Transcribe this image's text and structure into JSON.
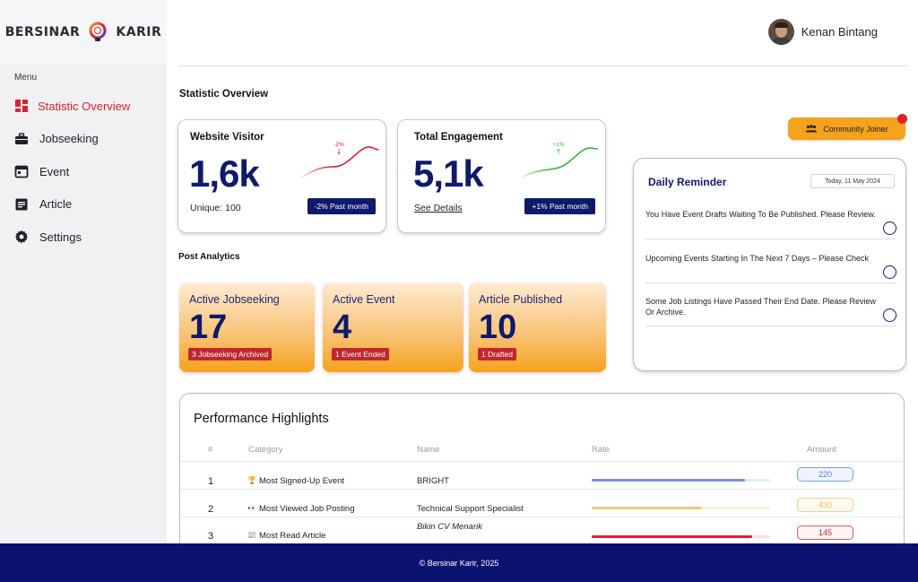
{
  "brand": {
    "left": "BERSINAR",
    "right": "KARIR",
    "accent": "#e0202e"
  },
  "sidebar": {
    "menu_label": "Menu",
    "items": [
      {
        "label": "Statistic Overview",
        "icon": "dashboard-icon",
        "active": true
      },
      {
        "label": "Jobseeking",
        "icon": "briefcase-icon"
      },
      {
        "label": "Event",
        "icon": "calendar-icon"
      },
      {
        "label": "Article",
        "icon": "article-icon"
      },
      {
        "label": "Settings",
        "icon": "gear-icon"
      }
    ]
  },
  "header": {
    "user_name": "Kenan Bintang"
  },
  "statistic_overview": {
    "title": "Statistic Overview",
    "website_visitor": {
      "title": "Website Visitor",
      "value": "1,6k",
      "sub": "Unique: 100",
      "badge": "-2% Past month",
      "trend_label": "-2%",
      "trend_color": "#e0202e"
    },
    "total_engagement": {
      "title": "Total Engagement",
      "value": "5,1k",
      "sub": "See Details",
      "badge": "+1% Past month",
      "trend_label": "+1%",
      "trend_color": "#3cb043"
    }
  },
  "post_analytics": {
    "title": "Post Analytics",
    "cards": [
      {
        "title": "Active Jobseeking",
        "value": "17",
        "tag": "3 Jobseeking Archived"
      },
      {
        "title": "Active Event",
        "value": "4",
        "tag": "1 Event Ended"
      },
      {
        "title": "Article Published",
        "value": "10",
        "tag": "1 Drafted"
      }
    ]
  },
  "community": {
    "label": "Community Joiner",
    "icon": "people-icon"
  },
  "reminder": {
    "title": "Daily Reminder",
    "date": "Today, 11 May 2024",
    "items": [
      {
        "text": "You Have Event Drafts Waiting To Be Published. Please Review."
      },
      {
        "text": "Upcoming Events Starting In The Next 7 Days – Please Check"
      },
      {
        "text": "Some Job Listings Have Passed Their End Date. Please Review Or Archive."
      }
    ]
  },
  "performance": {
    "title": "Performance Highlights",
    "columns": {
      "rank": "#",
      "category": "Category",
      "name": "Name",
      "rate": "Rate",
      "amount": "Amount"
    },
    "rows": [
      {
        "rank": "1",
        "icon": "🏆",
        "category": "Most Signed-Up Event",
        "name": "BRIGHT",
        "rate": 0.86,
        "track": "#dbeefc",
        "fill": "#7b8fe0",
        "amount": "220",
        "amount_border": "#7b9fd8",
        "amount_text": "#5a7cc2",
        "amount_bg": "#eef4fd"
      },
      {
        "rank": "2",
        "icon": "👀",
        "category": "Most Viewed Job Posting",
        "name": "Technical Support Specialist",
        "rate": 0.62,
        "track": "#fdf0d6",
        "fill": "#f7c77a",
        "amount": "430",
        "amount_border": "#f5cf8a",
        "amount_text": "#f0b856",
        "amount_bg": "#fffaf0"
      },
      {
        "rank": "3",
        "icon": "📰",
        "category": "Most Read Article",
        "name": "Bikin CV Menarik",
        "rate": 0.9,
        "track": "#fde0e0",
        "fill": "#e0202e",
        "amount": "145",
        "amount_border": "#e05a5a",
        "amount_text": "#c0272d",
        "amount_bg": "#fff4f4"
      }
    ]
  },
  "footer": {
    "text": "© Bersinar Karir, 2025"
  }
}
